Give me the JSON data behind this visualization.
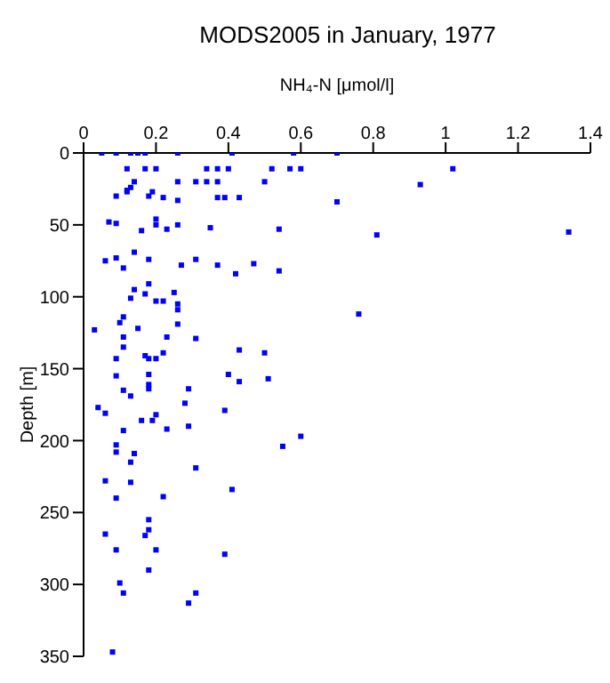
{
  "chart_data": {
    "type": "scatter",
    "title": "MODS2005 in January, 1977",
    "xlabel": "NH₄-N [μmol/l]",
    "ylabel": "Depth [m]",
    "xlim": [
      0,
      1.4
    ],
    "xticks": [
      0,
      0.2,
      0.4,
      0.6,
      0.8,
      1,
      1.2,
      1.4
    ],
    "ylim": [
      350,
      0
    ],
    "yticks": [
      0,
      50,
      100,
      150,
      200,
      250,
      300,
      350
    ],
    "grid": false,
    "legend": false,
    "marker": "square",
    "series": [
      {
        "color": "#0000ff",
        "x": [
          0.05,
          0.09,
          0.13,
          0.15,
          0.17,
          0.26,
          0.41,
          0.58,
          0.7,
          0.12,
          0.17,
          0.2,
          0.34,
          0.37,
          0.4,
          0.52,
          0.57,
          0.6,
          1.02,
          0.14,
          0.26,
          0.31,
          0.34,
          0.37,
          0.5,
          0.93,
          0.13,
          0.12,
          0.12,
          0.09,
          0.19,
          0.18,
          0.22,
          0.26,
          0.37,
          0.39,
          0.43,
          0.7,
          0.81,
          1.34,
          0.76,
          0.07,
          0.09,
          0.2,
          0.2,
          0.26,
          0.35,
          0.54,
          0.16,
          0.23,
          0.14,
          0.09,
          0.06,
          0.18,
          0.31,
          0.11,
          0.27,
          0.37,
          0.47,
          0.42,
          0.54,
          0.18,
          0.14,
          0.17,
          0.25,
          0.13,
          0.2,
          0.22,
          0.26,
          0.26,
          0.11,
          0.1,
          0.26,
          0.03,
          0.15,
          0.11,
          0.23,
          0.31,
          0.11,
          0.22,
          0.43,
          0.5,
          0.17,
          0.09,
          0.18,
          0.2,
          0.09,
          0.18,
          0.4,
          0.43,
          0.51,
          0.18,
          0.29,
          0.11,
          0.18,
          0.13,
          0.28,
          0.04,
          0.06,
          0.2,
          0.39,
          0.16,
          0.19,
          0.23,
          0.29,
          0.11,
          0.6,
          0.55,
          0.09,
          0.09,
          0.14,
          0.13,
          0.31,
          0.06,
          0.13,
          0.41,
          0.22,
          0.09,
          0.18,
          0.18,
          0.06,
          0.17,
          0.09,
          0.2,
          0.39,
          0.18,
          0.1,
          0.11,
          0.31,
          0.29,
          0.08
        ],
        "values": [
          0,
          0,
          0,
          0,
          0,
          0,
          0,
          0,
          0,
          11,
          11,
          11,
          11,
          11,
          11,
          11,
          11,
          11,
          11,
          20,
          20,
          20,
          20,
          20,
          20,
          22,
          24,
          26,
          27,
          30,
          27,
          30,
          31,
          33,
          31,
          31,
          31,
          34,
          57,
          55,
          112,
          48,
          49,
          46,
          50,
          50,
          52,
          53,
          54,
          53,
          69,
          73,
          75,
          74,
          74,
          80,
          78,
          78,
          77,
          84,
          82,
          91,
          95,
          98,
          97,
          101,
          103,
          103,
          105,
          109,
          114,
          118,
          119,
          123,
          122,
          128,
          128,
          129,
          135,
          139,
          137,
          139,
          141,
          143,
          143,
          143,
          155,
          154,
          154,
          159,
          157,
          161,
          164,
          165,
          164,
          169,
          174,
          177,
          181,
          182,
          179,
          186,
          186,
          192,
          190,
          193,
          197,
          204,
          203,
          208,
          209,
          215,
          219,
          228,
          229,
          234,
          239,
          240,
          255,
          262,
          265,
          266,
          276,
          276,
          279,
          290,
          299,
          306,
          306,
          313,
          347
        ]
      }
    ]
  }
}
